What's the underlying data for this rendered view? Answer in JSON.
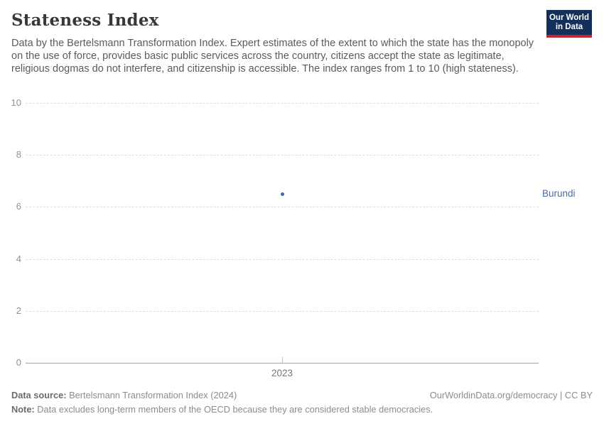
{
  "header": {
    "title": "Stateness Index",
    "subtitle": "Data by the Bertelsmann Transformation Index. Expert estimates of the extent to which the state has the monopoly on the use of force, provides basic public services across the country, citizens accept the state as legitimate, religious dogmas do not interfere, and citizenship is accessible. The index ranges from 1 to 10 (high stateness).",
    "logo": {
      "line1": "Our World",
      "line2": "in Data",
      "bg_color": "#12305a",
      "bar_color": "#c0262d"
    }
  },
  "chart_data": {
    "type": "scatter",
    "title": "Stateness Index",
    "categories": [
      "2023"
    ],
    "series": [
      {
        "name": "Burundi",
        "values": [
          6.5
        ],
        "color": "#4c6a9c"
      }
    ],
    "xlabel": "",
    "ylabel": "",
    "ylim": [
      0,
      10
    ],
    "yticks": [
      0,
      2,
      4,
      6,
      8,
      10
    ],
    "xticks": [
      "2023"
    ],
    "grid": true,
    "gridline_color": "#dddddd",
    "axis_color": "#a5a5a5",
    "legend_position": "right-of-point"
  },
  "footer": {
    "source_label": "Data source:",
    "source_text": " Bertelsmann Transformation Index (2024)",
    "rights": "OurWorldinData.org/democracy | CC BY",
    "note_label": "Note:",
    "note_text": " Data excludes long-term members of the OECD because they are considered stable democracies."
  }
}
